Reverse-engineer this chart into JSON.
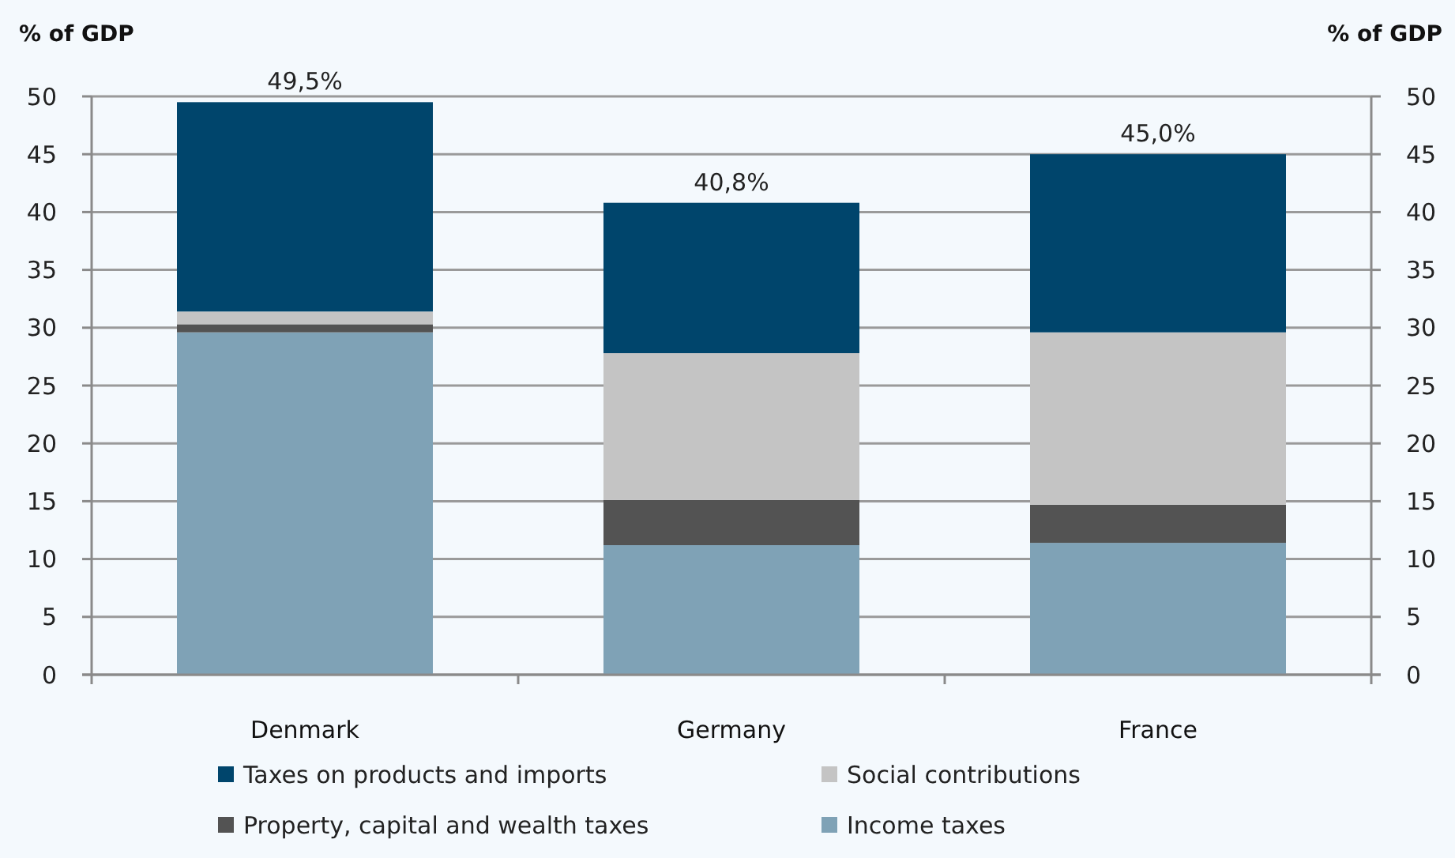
{
  "chart_data": {
    "type": "bar",
    "stacked": true,
    "ylabel": "% of GDP",
    "y2label": "% of GDP",
    "categories": [
      "Denmark",
      "Germany",
      "France"
    ],
    "series": [
      {
        "name": "Income taxes",
        "color": "#7fa2b6",
        "values": [
          29.6,
          11.2,
          11.4
        ]
      },
      {
        "name": "Property, capital and wealth taxes",
        "color": "#535353",
        "values": [
          0.7,
          3.9,
          3.3
        ]
      },
      {
        "name": "Social contributions",
        "color": "#c4c4c4",
        "values": [
          1.1,
          12.7,
          14.9
        ]
      },
      {
        "name": "Taxes on products and imports",
        "color": "#00456c",
        "values": [
          18.1,
          13.0,
          15.4
        ]
      }
    ],
    "totals": [
      "49,5%",
      "40,8%",
      "45,0%"
    ],
    "ylim": [
      0,
      50
    ],
    "yticks": [
      0,
      5,
      10,
      15,
      20,
      25,
      30,
      35,
      40,
      45,
      50
    ],
    "y2lim": [
      0,
      50
    ],
    "y2ticks": [
      0,
      5,
      10,
      15,
      20,
      25,
      30,
      35,
      40,
      45,
      50
    ],
    "grid": "y",
    "legend": "bottom"
  }
}
